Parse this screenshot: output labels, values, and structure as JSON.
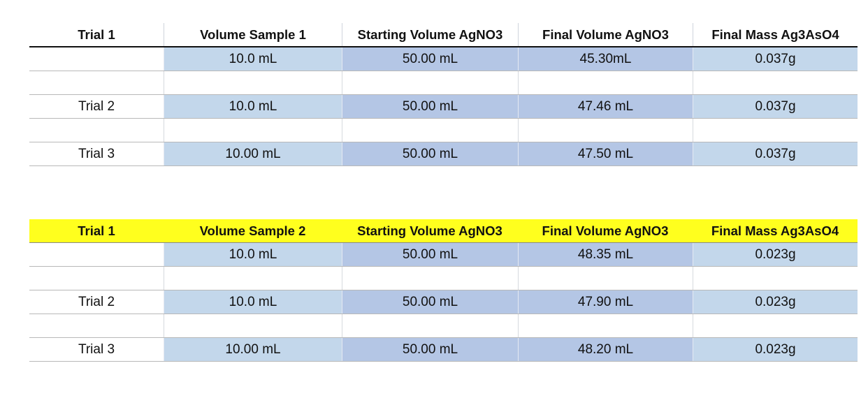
{
  "tables": [
    {
      "headers": [
        "Trial 1",
        "Volume Sample 1",
        "Starting Volume AgNO3",
        "Final Volume AgNO3",
        "Final Mass Ag3AsO4"
      ],
      "rows": [
        {
          "trial": "",
          "volume_sample": "10.0 mL",
          "starting_volume": "50.00 mL",
          "final_volume": "45.30mL",
          "final_mass": "0.037g"
        },
        {
          "trial": "Trial 2",
          "volume_sample": "10.0 mL",
          "starting_volume": "50.00 mL",
          "final_volume": "47.46 mL",
          "final_mass": "0.037g"
        },
        {
          "trial": "Trial 3",
          "volume_sample": "10.00 mL",
          "starting_volume": "50.00 mL",
          "final_volume": "47.50 mL",
          "final_mass": "0.037g"
        }
      ]
    },
    {
      "headers": [
        "Trial 1",
        "Volume Sample 2",
        "Starting Volume AgNO3",
        "Final Volume AgNO3",
        "Final Mass Ag3AsO4"
      ],
      "rows": [
        {
          "trial": "",
          "volume_sample": "10.0 mL",
          "starting_volume": "50.00 mL",
          "final_volume": "48.35 mL",
          "final_mass": "0.023g"
        },
        {
          "trial": "Trial 2",
          "volume_sample": "10.0 mL",
          "starting_volume": "50.00 mL",
          "final_volume": "47.90 mL",
          "final_mass": "0.023g"
        },
        {
          "trial": "Trial 3",
          "volume_sample": "10.00 mL",
          "starting_volume": "50.00 mL",
          "final_volume": "48.20 mL",
          "final_mass": "0.023g"
        }
      ]
    }
  ],
  "colors": {
    "highlight_header": "#ffff1e",
    "cell_light_blue": "#c3d7eb",
    "cell_mid_blue": "#b4c6e5"
  }
}
